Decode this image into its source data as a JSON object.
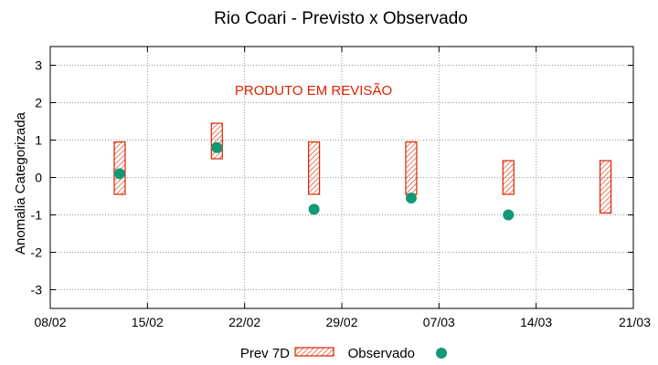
{
  "chart_data": {
    "type": "scatter",
    "title": "Rio Coari - Previsto x Observado",
    "xlabel": "",
    "ylabel": "Anomalia Categorizada",
    "annotation": "PRODUTO EM REVISÃO",
    "x_ticks": [
      "08/02",
      "15/02",
      "22/02",
      "29/02",
      "07/03",
      "14/03",
      "21/03"
    ],
    "y_ticks": [
      "3",
      "2",
      "1",
      "0",
      "-1",
      "-2",
      "-3"
    ],
    "xlim": [
      "08/02",
      "21/03"
    ],
    "ylim": [
      -3.5,
      3.5
    ],
    "grid": true,
    "legend_position": "bottom",
    "colors": {
      "forecast": "#dd2200",
      "observed": "#119977",
      "annotation": "#dd2200",
      "grid": "#999999"
    },
    "series": [
      {
        "name": "Prev 7D",
        "kind": "range-box",
        "points": [
          {
            "x": "13/02",
            "low": -0.45,
            "high": 0.95
          },
          {
            "x": "20/02",
            "low": 0.5,
            "high": 1.45
          },
          {
            "x": "27/02",
            "low": -0.45,
            "high": 0.95
          },
          {
            "x": "05/03",
            "low": -0.45,
            "high": 0.95
          },
          {
            "x": "12/03",
            "low": -0.45,
            "high": 0.45
          },
          {
            "x": "19/03",
            "low": -0.95,
            "high": 0.45
          }
        ]
      },
      {
        "name": "Observado",
        "kind": "point",
        "points": [
          {
            "x": "13/02",
            "y": 0.1
          },
          {
            "x": "20/02",
            "y": 0.8
          },
          {
            "x": "27/02",
            "y": -0.85
          },
          {
            "x": "05/03",
            "y": -0.55
          },
          {
            "x": "12/03",
            "y": -1.0
          }
        ]
      }
    ]
  }
}
